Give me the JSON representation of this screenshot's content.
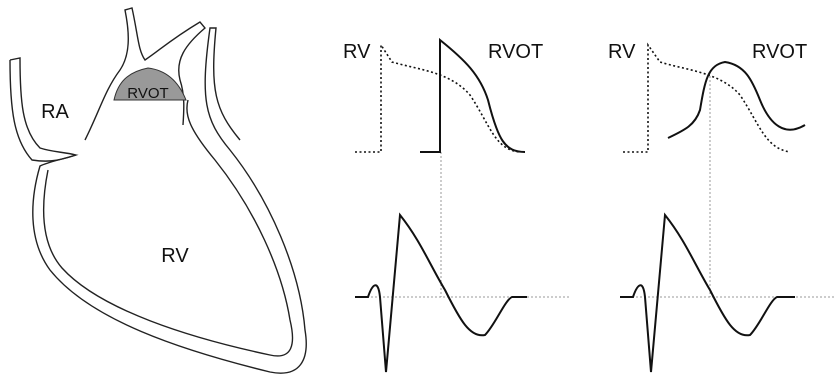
{
  "heart": {
    "labels": {
      "ra": "RA",
      "rvot": "RVOT",
      "rv": "RV"
    }
  },
  "panels": [
    {
      "label_left": "RV",
      "label_right": "RVOT"
    },
    {
      "label_left": "RV",
      "label_right": "RVOT"
    }
  ]
}
